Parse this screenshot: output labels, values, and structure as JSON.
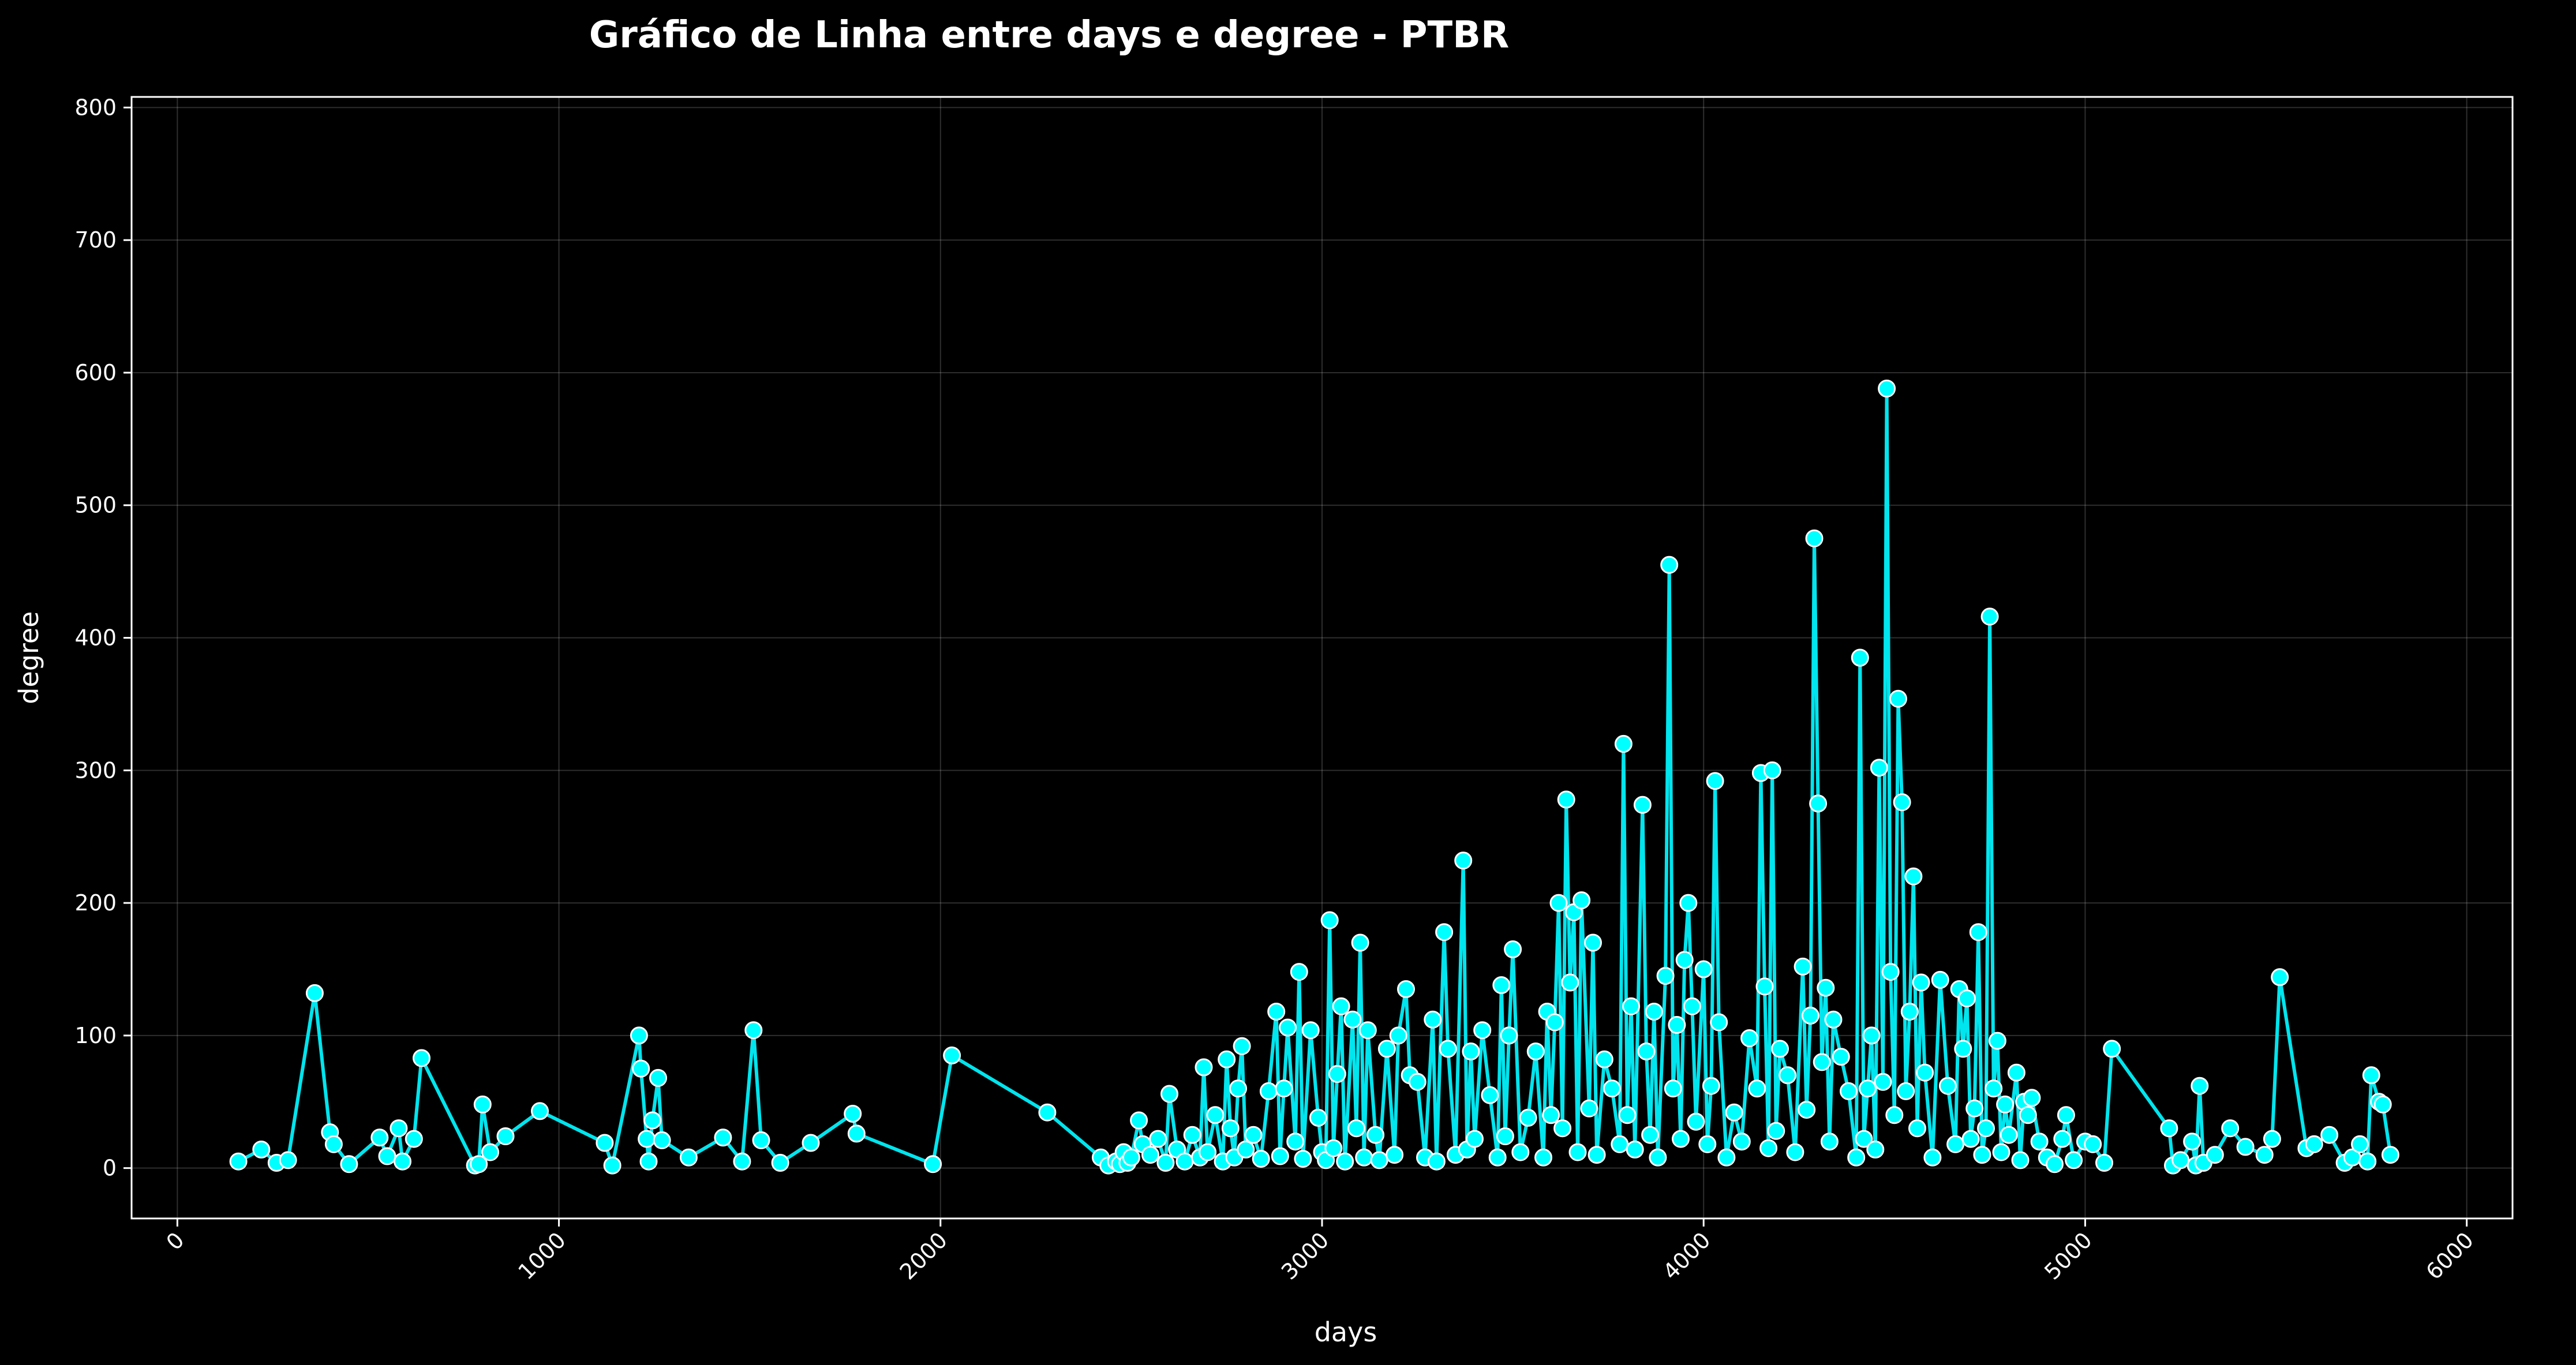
{
  "chart_data": {
    "type": "line",
    "title": "Gráfico de Linha entre days e degree - PTBR",
    "xlabel": "days",
    "ylabel": "degree",
    "xlim": [
      -120,
      6120
    ],
    "ylim": [
      -38,
      808
    ],
    "xticks": [
      0,
      1000,
      2000,
      3000,
      4000,
      5000,
      6000
    ],
    "yticks": [
      0,
      100,
      200,
      300,
      400,
      500,
      600,
      700,
      800
    ],
    "xtick_labels": [
      "0",
      "1000",
      "2000",
      "3000",
      "4000",
      "5000",
      "6000"
    ],
    "ytick_labels": [
      "0",
      "100",
      "200",
      "300",
      "400",
      "500",
      "600",
      "700",
      "800"
    ],
    "grid": true,
    "legend": "none",
    "line_color": "#00e5ee",
    "marker_color": "#00ffff",
    "marker_edge_color": "#ffffff",
    "series": [
      {
        "x": [
          160,
          220,
          260,
          290,
          360,
          400,
          410,
          450,
          530,
          550,
          580,
          590,
          620,
          640,
          780,
          790,
          800,
          820,
          860,
          950,
          1120,
          1140,
          1210,
          1215,
          1230,
          1235,
          1245,
          1260,
          1270,
          1340,
          1430,
          1480,
          1510,
          1530,
          1580,
          1660,
          1770,
          1780,
          1980,
          2030,
          2280,
          2420,
          2440,
          2460,
          2470,
          2480,
          2490,
          2500,
          2520,
          2530,
          2550,
          2570,
          2590,
          2600,
          2620,
          2640,
          2660,
          2680,
          2690,
          2700,
          2720,
          2740,
          2750,
          2760,
          2770,
          2780,
          2790,
          2800,
          2820,
          2840,
          2860,
          2880,
          2890,
          2900,
          2910,
          2930,
          2940,
          2950,
          2970,
          2990,
          3000,
          3010,
          3020,
          3030,
          3040,
          3050,
          3060,
          3080,
          3090,
          3100,
          3110,
          3120,
          3140,
          3150,
          3170,
          3190,
          3200,
          3220,
          3230,
          3250,
          3270,
          3290,
          3300,
          3320,
          3330,
          3350,
          3370,
          3380,
          3390,
          3400,
          3420,
          3440,
          3460,
          3470,
          3480,
          3490,
          3500,
          3520,
          3540,
          3560,
          3580,
          3590,
          3600,
          3610,
          3620,
          3630,
          3640,
          3650,
          3660,
          3670,
          3680,
          3700,
          3710,
          3720,
          3740,
          3760,
          3780,
          3790,
          3800,
          3810,
          3820,
          3840,
          3850,
          3860,
          3870,
          3880,
          3900,
          3910,
          3920,
          3930,
          3940,
          3950,
          3960,
          3970,
          3980,
          4000,
          4010,
          4020,
          4030,
          4040,
          4060,
          4080,
          4100,
          4120,
          4140,
          4150,
          4160,
          4170,
          4180,
          4190,
          4200,
          4220,
          4240,
          4260,
          4270,
          4280,
          4290,
          4300,
          4310,
          4320,
          4330,
          4340,
          4360,
          4380,
          4400,
          4410,
          4420,
          4430,
          4440,
          4450,
          4460,
          4470,
          4480,
          4490,
          4500,
          4510,
          4520,
          4530,
          4540,
          4550,
          4560,
          4570,
          4580,
          4600,
          4620,
          4640,
          4660,
          4670,
          4680,
          4690,
          4700,
          4710,
          4720,
          4730,
          4740,
          4750,
          4760,
          4770,
          4780,
          4790,
          4800,
          4820,
          4830,
          4840,
          4850,
          4860,
          4880,
          4900,
          4920,
          4940,
          4950,
          4970,
          5000,
          5020,
          5050,
          5070,
          5220,
          5230,
          5250,
          5280,
          5290,
          5300,
          5310,
          5340,
          5380,
          5420,
          5470,
          5490,
          5510,
          5580,
          5600,
          5640,
          5680,
          5700,
          5720,
          5740,
          5750,
          5770,
          5780,
          5800
        ],
        "y": [
          5,
          14,
          4,
          6,
          132,
          27,
          18,
          3,
          23,
          9,
          30,
          5,
          22,
          83,
          2,
          3,
          48,
          12,
          24,
          43,
          19,
          2,
          100,
          75,
          22,
          5,
          36,
          68,
          21,
          8,
          23,
          5,
          104,
          21,
          4,
          19,
          41,
          26,
          3,
          85,
          42,
          8,
          2,
          5,
          3,
          12,
          4,
          8,
          36,
          18,
          10,
          22,
          4,
          56,
          14,
          5,
          25,
          8,
          76,
          12,
          40,
          5,
          82,
          30,
          8,
          60,
          92,
          14,
          25,
          7,
          58,
          118,
          9,
          60,
          106,
          20,
          148,
          7,
          104,
          38,
          12,
          6,
          187,
          15,
          71,
          122,
          5,
          112,
          30,
          170,
          8,
          104,
          25,
          6,
          90,
          10,
          100,
          135,
          70,
          65,
          8,
          112,
          5,
          178,
          90,
          10,
          232,
          14,
          88,
          22,
          104,
          55,
          8,
          138,
          24,
          100,
          165,
          12,
          38,
          88,
          8,
          118,
          40,
          110,
          200,
          30,
          278,
          140,
          193,
          12,
          202,
          45,
          170,
          10,
          82,
          60,
          18,
          320,
          40,
          122,
          14,
          274,
          88,
          25,
          118,
          8,
          145,
          455,
          60,
          108,
          22,
          157,
          200,
          122,
          35,
          150,
          18,
          62,
          292,
          110,
          8,
          42,
          20,
          98,
          60,
          298,
          137,
          15,
          300,
          28,
          90,
          70,
          12,
          152,
          44,
          115,
          475,
          275,
          80,
          136,
          20,
          112,
          84,
          58,
          8,
          385,
          22,
          60,
          100,
          14,
          302,
          65,
          588,
          148,
          40,
          354,
          276,
          58,
          118,
          220,
          30,
          140,
          72,
          8,
          142,
          62,
          18,
          135,
          90,
          128,
          22,
          45,
          178,
          10,
          30,
          416,
          60,
          96,
          12,
          48,
          25,
          72,
          6,
          50,
          40,
          53,
          20,
          8,
          3,
          22,
          40,
          6,
          20,
          18,
          4,
          90,
          30,
          2,
          6,
          20,
          2,
          62,
          4,
          10,
          30,
          16,
          10,
          22,
          144,
          15,
          18,
          25,
          4,
          8,
          18,
          5,
          70,
          50,
          48,
          10
        ]
      }
    ]
  }
}
